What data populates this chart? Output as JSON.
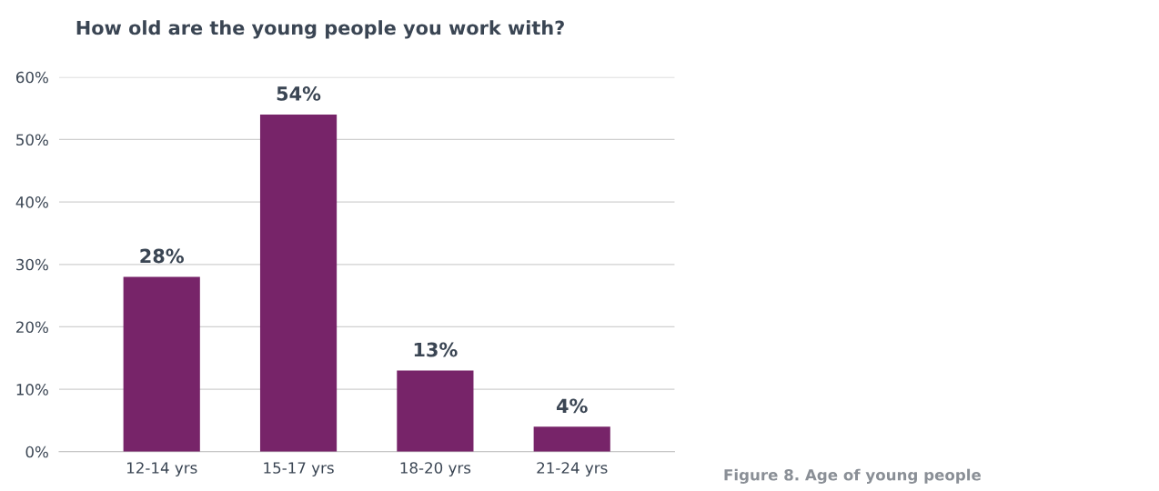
{
  "chart_data": {
    "type": "bar",
    "title": "How old are the young people you work with?",
    "categories": [
      "12-14 yrs",
      "15-17 yrs",
      "18-20 yrs",
      "21-24 yrs"
    ],
    "values": [
      28,
      54,
      13,
      4
    ],
    "color": "#772469",
    "ylim": [
      0,
      60
    ],
    "yticks": [
      {
        "value": 0,
        "label": "0%"
      },
      {
        "value": 10,
        "label": "10%"
      },
      {
        "value": 20,
        "label": "20%"
      },
      {
        "value": 30,
        "label": "30%"
      },
      {
        "value": 40,
        "label": "40%"
      },
      {
        "value": 50,
        "label": "50%"
      },
      {
        "value": 60,
        "label": "60%"
      }
    ],
    "grid": "y",
    "data_labels": true,
    "value_labels": [
      "28%",
      "54%",
      "13%",
      "4%"
    ],
    "annotations": [
      "Figure 8. Age of young people"
    ]
  }
}
